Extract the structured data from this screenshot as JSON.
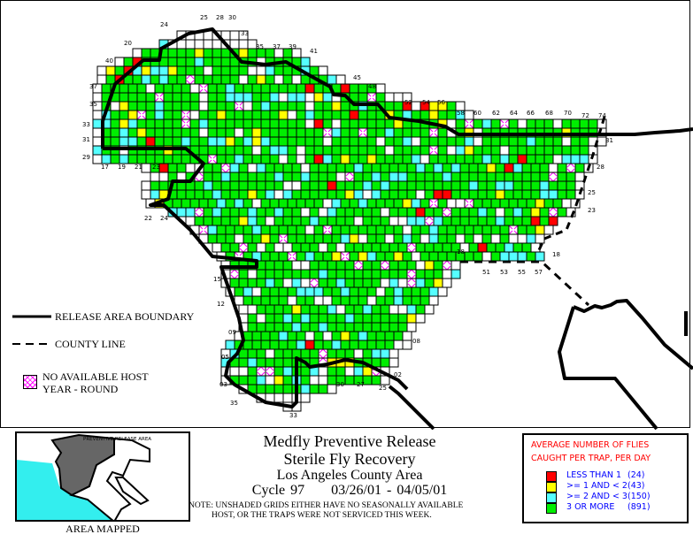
{
  "map": {
    "legend_lines": {
      "release_area_boundary": "RELEASE AREA BOUNDARY",
      "county_line": "COUNTY LINE",
      "no_host_1": "NO AVAILABLE HOST",
      "no_host_2": "YEAR - ROUND"
    },
    "grid_labels": [
      "25",
      "28",
      "30",
      "24",
      "20",
      "40",
      "33",
      "35",
      "37",
      "39",
      "41",
      "45",
      "48",
      "52",
      "54",
      "56",
      "58",
      "60",
      "62",
      "64",
      "66",
      "68",
      "70",
      "72",
      "74",
      "37",
      "35",
      "33",
      "31",
      "29",
      "17",
      "19",
      "21",
      "23",
      "22",
      "24",
      "31",
      "28",
      "25",
      "23",
      "18",
      "51",
      "53",
      "55",
      "57",
      "18",
      "15",
      "12",
      "09",
      "08",
      "05",
      "03",
      "35",
      "33",
      "30",
      "27",
      "25",
      "02"
    ],
    "colors": {
      "red": "#ff0000",
      "yellow": "#ffff00",
      "cyan": "#55ffff",
      "green": "#00ee00",
      "pink_hatch": "#ff00ff",
      "unshaded": "#ffffff"
    }
  },
  "inset": {
    "label": "PREVENTIVE RELEASE AREA",
    "caption": "AREA MAPPED"
  },
  "title": {
    "line1": "Medfly Preventive Release",
    "line2": "Sterile Fly Recovery",
    "line3": "Los Angeles County Area",
    "cycle": "Cycle 97     03/26/01 - 04/05/01",
    "note1": "NOTE: UNSHADED GRIDS EITHER HAVE NO SEASONALLY AVAILABLE",
    "note2": "HOST, OR THE TRAPS WERE NOT SERVICED THIS WEEK."
  },
  "legend": {
    "heading1": "AVERAGE NUMBER OF FLIES",
    "heading2": "CAUGHT PER TRAP, PER DAY",
    "items": [
      {
        "label": "LESS THAN 1",
        "count": "(24)",
        "color": "#ff0000"
      },
      {
        "label": ">= 1 AND < 2",
        "count": "(43)",
        "color": "#ffff00"
      },
      {
        "label": ">= 2 AND < 3",
        "count": "(150)",
        "color": "#55ffff"
      },
      {
        "label": "3 OR MORE",
        "count": "(891)",
        "color": "#00ee00"
      }
    ]
  }
}
